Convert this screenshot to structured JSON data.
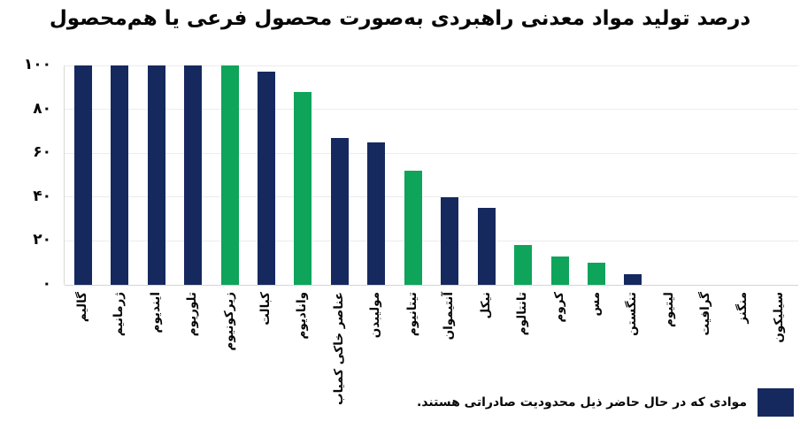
{
  "title": "درصد تولید مواد معدنی راهبردی به‌صورت محصول فرعی یا هم‌محصول",
  "colors": {
    "navy": "#15295F",
    "green": "#0EA45A",
    "grid": "#ECECEC",
    "baseline": "#D4D4D4",
    "text": "#060606"
  },
  "chart_data": {
    "type": "bar",
    "title": "درصد تولید مواد معدنی راهبردی به‌صورت محصول فرعی یا هم‌محصول",
    "categories": [
      "گالیم",
      "ژرمانیم",
      "ایندیوم",
      "تلوریوم",
      "زیرکونیوم",
      "کبالت",
      "وانادیوم",
      "عناصر خاکی کمیاب",
      "مولیبدن",
      "تیتانیوم",
      "آنتیموان",
      "نیکل",
      "تانتالوم",
      "کروم",
      "مس",
      "تنگستن",
      "لیتیوم",
      "گرافیت",
      "منگنز",
      "سیلیکون"
    ],
    "values": [
      100,
      100,
      100,
      100,
      100,
      97,
      88,
      67,
      65,
      52,
      40,
      35,
      18,
      13,
      10,
      5,
      0,
      0,
      0,
      0
    ],
    "bar_colors": [
      "navy",
      "navy",
      "navy",
      "navy",
      "green",
      "navy",
      "green",
      "navy",
      "navy",
      "green",
      "navy",
      "navy",
      "green",
      "green",
      "green",
      "navy",
      null,
      null,
      null,
      null
    ],
    "xlabel": "",
    "ylabel": "",
    "ylim": [
      0,
      100
    ],
    "grid": true,
    "legend_position": "bottom-right",
    "y_axis": {
      "tick_labels": [
        "۱۰۰",
        "۸۰",
        "۶۰",
        "۴۰",
        "۲۰",
        "۰"
      ],
      "tick_values": [
        100,
        80,
        60,
        40,
        20,
        0
      ]
    }
  },
  "legend": {
    "label": "موادی که در حال حاضر ذیل محدودیت صادراتی هستند.",
    "swatch_color_name": "navy",
    "meaning": "navy"
  }
}
